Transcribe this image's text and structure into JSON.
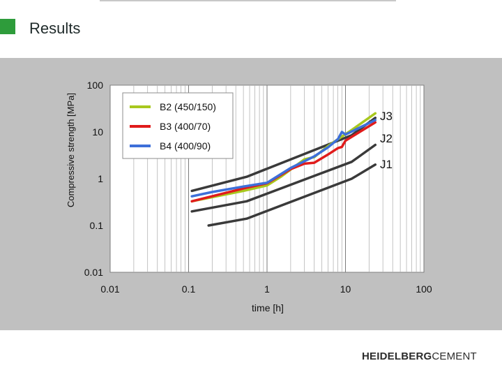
{
  "slide": {
    "title": "Results",
    "accent_color": "#2e9c3b",
    "chart_background": "#c0c0c0",
    "logo_part1": "HEIDELBERG",
    "logo_part2": "CEMENT"
  },
  "chart_data": {
    "type": "line",
    "title": "",
    "xlabel": "time [h]",
    "ylabel": "Compressive strength [MPa]",
    "x_scale": "log",
    "y_scale": "log",
    "xlim": [
      0.01,
      100
    ],
    "ylim": [
      0.01,
      100
    ],
    "x_ticks": [
      "0.01",
      "0.1",
      "1",
      "10",
      "100"
    ],
    "y_ticks": [
      "100",
      "10",
      "1",
      "0.1",
      "0.01"
    ],
    "grid": "vertical minor and major lines",
    "legend_position": "top-left inside plot",
    "series": [
      {
        "name": "B2 (450/150)",
        "color": "#a8c81e",
        "x": [
          0.11,
          0.5,
          1.0,
          1.5,
          3,
          4,
          6,
          8,
          12,
          24
        ],
        "y": [
          0.33,
          0.55,
          0.72,
          1.1,
          2.6,
          2.9,
          5.0,
          7.0,
          11,
          25
        ]
      },
      {
        "name": "B3 (400/70)",
        "color": "#e01b1b",
        "x": [
          0.11,
          0.5,
          1.0,
          2.0,
          3,
          4,
          6,
          8,
          9,
          10,
          24
        ],
        "y": [
          0.33,
          0.62,
          0.8,
          1.6,
          2.1,
          2.2,
          3.3,
          4.5,
          4.8,
          6.5,
          16
        ]
      },
      {
        "name": "B4 (400/90)",
        "color": "#3d6fd9",
        "x": [
          0.11,
          0.2,
          0.5,
          1.0,
          2,
          4,
          6,
          8,
          9,
          10,
          24
        ],
        "y": [
          0.42,
          0.52,
          0.68,
          0.82,
          1.7,
          3.0,
          4.7,
          7.0,
          10,
          8.8,
          18
        ]
      },
      {
        "name": "J3",
        "color": "#3a3a3a",
        "x": [
          0.11,
          0.55,
          12,
          24
        ],
        "y": [
          0.55,
          1.1,
          8.5,
          20
        ]
      },
      {
        "name": "J2",
        "color": "#3a3a3a",
        "x": [
          0.11,
          0.55,
          12,
          24
        ],
        "y": [
          0.2,
          0.33,
          2.3,
          5.3
        ]
      },
      {
        "name": "J1",
        "color": "#3a3a3a",
        "x": [
          0.18,
          0.55,
          12,
          24
        ],
        "y": [
          0.1,
          0.14,
          1.0,
          2.0
        ]
      }
    ],
    "end_labels": [
      "J3",
      "J2",
      "J1"
    ]
  }
}
